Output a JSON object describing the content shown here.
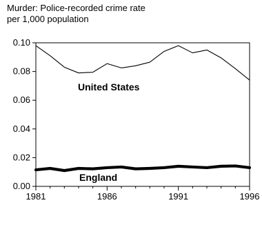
{
  "chart_data": {
    "type": "line",
    "title": "Murder: Police-recorded crime rate",
    "subtitle": "per 1,000 population",
    "x": [
      1981,
      1982,
      1983,
      1984,
      1985,
      1986,
      1987,
      1988,
      1989,
      1990,
      1991,
      1992,
      1993,
      1994,
      1995,
      1996
    ],
    "x_ticks": [
      "1981",
      "1986",
      "1991",
      "1996"
    ],
    "y_ticks": [
      "0.00",
      "0.02",
      "0.04",
      "0.06",
      "0.08",
      "0.10"
    ],
    "xlim": [
      1981,
      1996
    ],
    "ylim": [
      0,
      0.1
    ],
    "grid": false,
    "series": [
      {
        "name": "United States",
        "values": [
          0.098,
          0.091,
          0.083,
          0.079,
          0.0795,
          0.0855,
          0.0825,
          0.084,
          0.0865,
          0.094,
          0.098,
          0.093,
          0.095,
          0.0895,
          0.082,
          0.074
        ],
        "color": "#000000",
        "line_weight": "thin"
      },
      {
        "name": "England",
        "values": [
          0.0115,
          0.0125,
          0.011,
          0.0125,
          0.0122,
          0.013,
          0.0135,
          0.0122,
          0.0125,
          0.013,
          0.014,
          0.0135,
          0.013,
          0.014,
          0.0142,
          0.013
        ],
        "color": "#000000",
        "line_weight": "thick"
      }
    ]
  }
}
